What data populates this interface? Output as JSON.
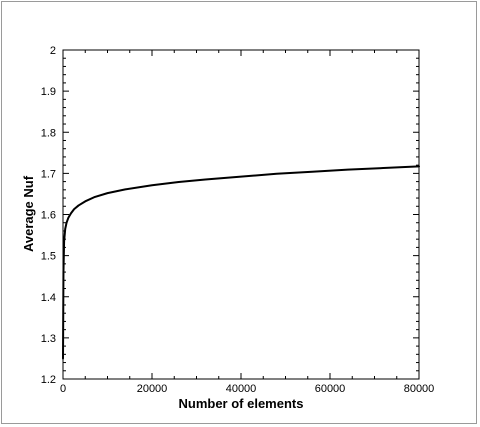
{
  "chart_data": {
    "type": "line",
    "xlabel": "Number of elements",
    "ylabel": "Average Nuf",
    "xlim": [
      0,
      80000
    ],
    "ylim": [
      1.2,
      2.0
    ],
    "xticks": [
      0,
      20000,
      40000,
      60000,
      80000
    ],
    "yticks": [
      1.2,
      1.3,
      1.4,
      1.5,
      1.6,
      1.7,
      1.8,
      1.9,
      2.0
    ],
    "grid": false,
    "series": [
      {
        "color": "#000000",
        "x": [
          0,
          100,
          250,
          500,
          800,
          1200,
          1800,
          2500,
          3500,
          5000,
          7000,
          10000,
          14000,
          20000,
          26000,
          32000,
          40000,
          48000,
          56000,
          64000,
          72000,
          80000
        ],
        "y": [
          1.25,
          1.46,
          1.535,
          1.565,
          1.58,
          1.592,
          1.603,
          1.613,
          1.622,
          1.632,
          1.642,
          1.652,
          1.661,
          1.671,
          1.679,
          1.685,
          1.692,
          1.699,
          1.704,
          1.709,
          1.713,
          1.717
        ]
      }
    ]
  }
}
